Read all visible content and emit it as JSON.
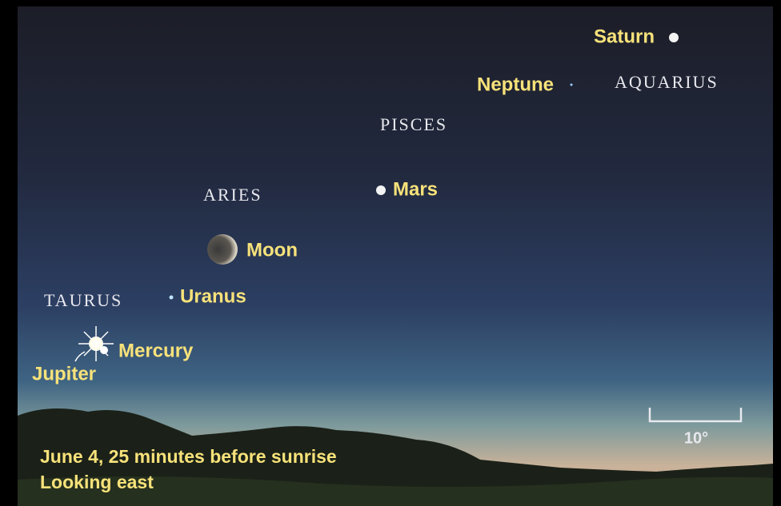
{
  "constellations": [
    "AQUARIUS",
    "PISCES",
    "ARIES",
    "TAURUS"
  ],
  "planets": [
    "Saturn",
    "Neptune",
    "Mars",
    "Moon",
    "Uranus",
    "Mercury",
    "Jupiter"
  ],
  "scale_label": "10°",
  "caption": [
    "June 4, 25 minutes before sunrise",
    "Looking east"
  ]
}
